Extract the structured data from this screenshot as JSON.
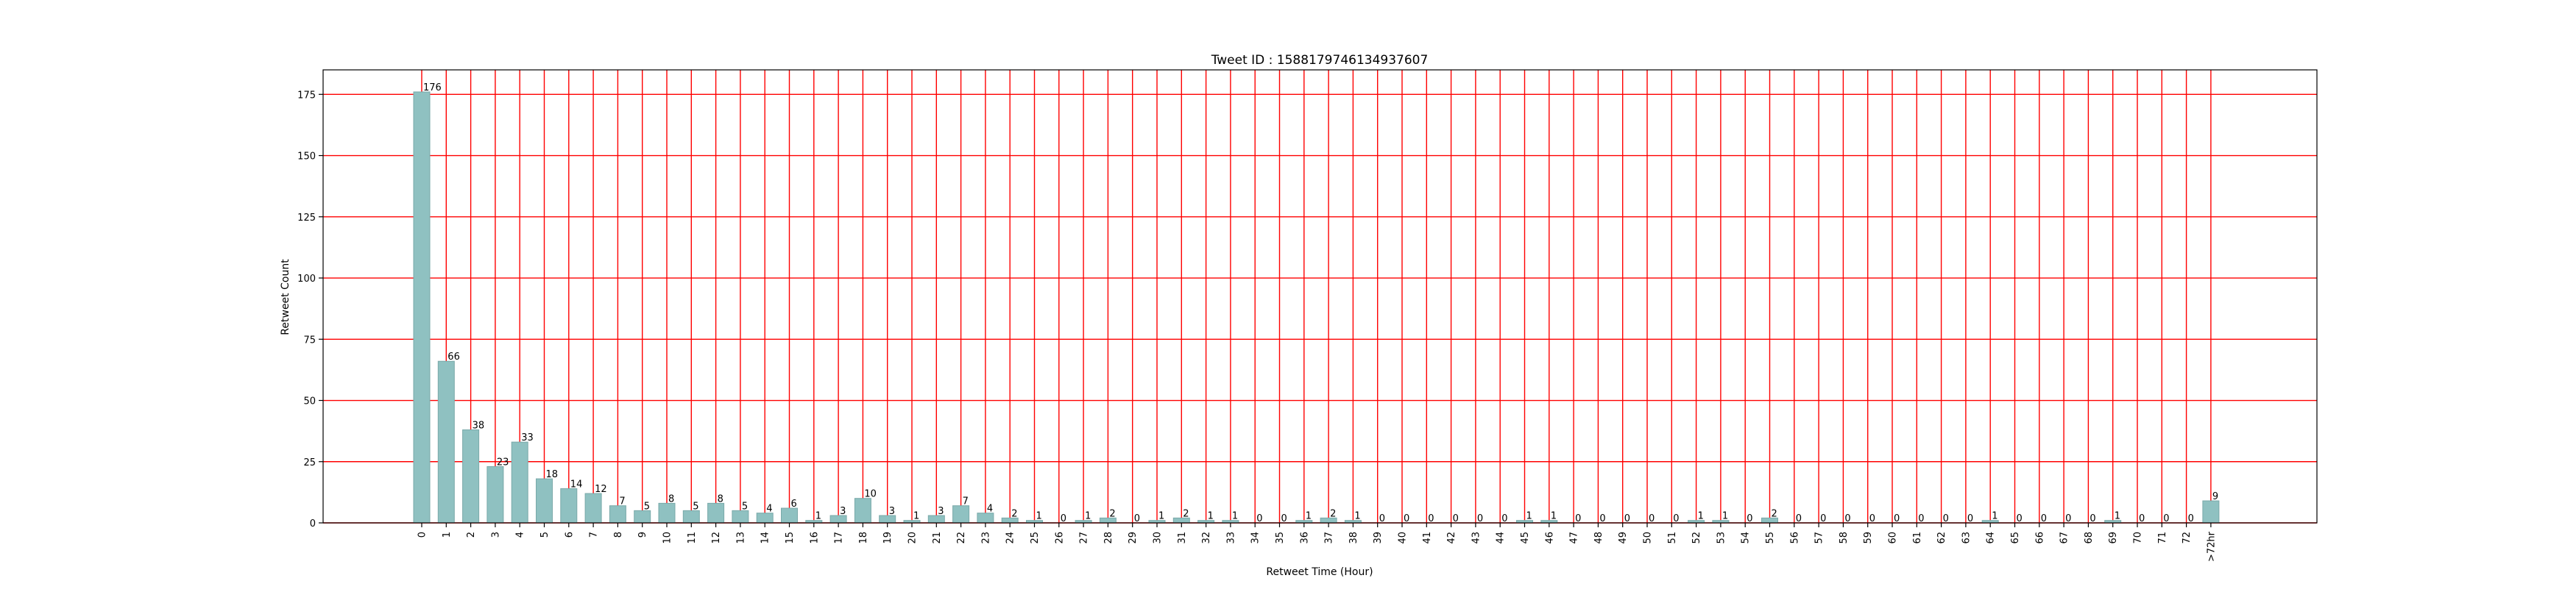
{
  "chart_data": {
    "type": "bar",
    "title": "Tweet ID : 1588179746134937607",
    "xlabel": "Retweet Time (Hour)",
    "ylabel": "Retweet Count",
    "categories": [
      "0",
      "1",
      "2",
      "3",
      "4",
      "5",
      "6",
      "7",
      "8",
      "9",
      "10",
      "11",
      "12",
      "13",
      "14",
      "15",
      "16",
      "17",
      "18",
      "19",
      "20",
      "21",
      "22",
      "23",
      "24",
      "25",
      "26",
      "27",
      "28",
      "29",
      "30",
      "31",
      "32",
      "33",
      "34",
      "35",
      "36",
      "37",
      "38",
      "39",
      "40",
      "41",
      "42",
      "43",
      "44",
      "45",
      "46",
      "47",
      "48",
      "49",
      "50",
      "51",
      "52",
      "53",
      "54",
      "55",
      "56",
      "57",
      "58",
      "59",
      "60",
      "61",
      "62",
      "63",
      "64",
      "65",
      "66",
      "67",
      "68",
      "69",
      "70",
      "71",
      "72",
      ">72hr"
    ],
    "values": [
      176,
      66,
      38,
      23,
      33,
      18,
      14,
      12,
      7,
      5,
      8,
      5,
      8,
      5,
      4,
      6,
      1,
      3,
      10,
      3,
      1,
      3,
      7,
      4,
      2,
      1,
      0,
      1,
      2,
      0,
      1,
      2,
      1,
      1,
      0,
      0,
      1,
      2,
      1,
      0,
      0,
      0,
      0,
      0,
      0,
      1,
      1,
      0,
      0,
      0,
      0,
      0,
      1,
      1,
      0,
      2,
      0,
      0,
      0,
      0,
      0,
      0,
      0,
      0,
      1,
      0,
      0,
      0,
      0,
      1,
      0,
      0,
      0,
      9
    ],
    "ylim": [
      0,
      185
    ],
    "yticks": [
      0,
      25,
      50,
      75,
      100,
      125,
      150,
      175
    ],
    "grid": true,
    "colors": {
      "bar": "#8fc1c1",
      "bar_edge": "#7aa9a9",
      "grid": "#ff0000",
      "axis": "#000000",
      "text": "#000000"
    }
  }
}
